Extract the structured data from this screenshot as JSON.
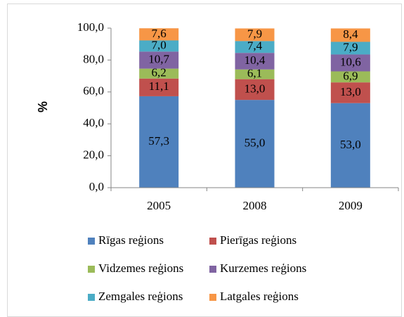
{
  "chart_data": {
    "type": "stacked_bar",
    "ylabel": "%",
    "categories": [
      "2005",
      "2008",
      "2009"
    ],
    "series": [
      {
        "name": "Rīgas reģions",
        "color": "#4f81bd",
        "values": [
          57.3,
          55.0,
          53.0
        ],
        "value_labels": [
          "57,3",
          "55,0",
          "53,0"
        ]
      },
      {
        "name": "Pierīgas reģions",
        "color": "#c0504d",
        "values": [
          11.1,
          13.0,
          13.0
        ],
        "value_labels": [
          "11,1",
          "13,0",
          "13,0"
        ]
      },
      {
        "name": "Vidzemes reģions",
        "color": "#9bbb59",
        "values": [
          6.2,
          6.1,
          6.9
        ],
        "value_labels": [
          "6,2",
          "6,1",
          "6,9"
        ]
      },
      {
        "name": "Kurzemes reģions",
        "color": "#8064a2",
        "values": [
          10.7,
          10.4,
          10.6
        ],
        "value_labels": [
          "10,7",
          "10,4",
          "10,6"
        ]
      },
      {
        "name": "Zemgales reģions",
        "color": "#4bacc6",
        "values": [
          7.0,
          7.4,
          7.9
        ],
        "value_labels": [
          "7,0",
          "7,4",
          "7,9"
        ]
      },
      {
        "name": "Latgales reģions",
        "color": "#f79646",
        "values": [
          7.6,
          7.9,
          8.4
        ],
        "value_labels": [
          "7,6",
          "7,9",
          "8,4"
        ]
      }
    ],
    "ylim": [
      0,
      100
    ],
    "yticks": [
      {
        "value": 0,
        "label": "0,0"
      },
      {
        "value": 20,
        "label": "20,0"
      },
      {
        "value": 40,
        "label": "40,0"
      },
      {
        "value": 60,
        "label": "60,0"
      },
      {
        "value": 80,
        "label": "80,0"
      },
      {
        "value": 100,
        "label": "100,0"
      }
    ],
    "legend": "bottom"
  }
}
